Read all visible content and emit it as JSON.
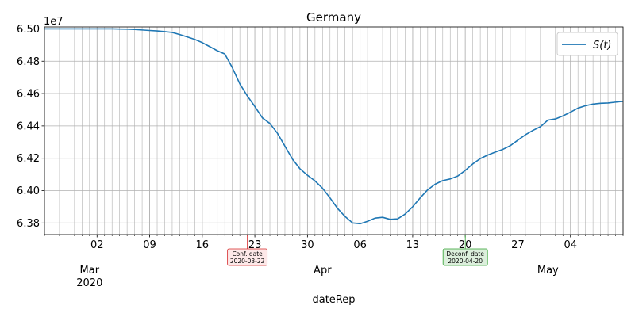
{
  "chart_data": {
    "type": "line",
    "title": "Germany",
    "xlabel": "dateRep",
    "ylabel": "",
    "y_offset_label": "1e7",
    "y_scale": 10000000,
    "ylim": [
      6.3728,
      6.5012
    ],
    "xlim": [
      "2020-02-24",
      "2020-05-11"
    ],
    "grid": true,
    "legend_position": "top-right",
    "colors": {
      "series": "#1f77b4",
      "grid": "#b0b0b0",
      "conf": "#d62728",
      "deconf": "#2ca02c"
    },
    "x_ticks": [
      {
        "date": "2020-03-02",
        "label": "02"
      },
      {
        "date": "2020-03-09",
        "label": "09"
      },
      {
        "date": "2020-03-16",
        "label": "16"
      },
      {
        "date": "2020-03-23",
        "label": "23"
      },
      {
        "date": "2020-03-30",
        "label": "30"
      },
      {
        "date": "2020-04-06",
        "label": "06"
      },
      {
        "date": "2020-04-13",
        "label": "13"
      },
      {
        "date": "2020-04-20",
        "label": "20"
      },
      {
        "date": "2020-04-27",
        "label": "27"
      },
      {
        "date": "2020-05-04",
        "label": "04"
      }
    ],
    "month_labels": [
      {
        "date": "2020-03-01",
        "label": "Mar",
        "year": "2020"
      },
      {
        "date": "2020-04-01",
        "label": "Apr",
        "year": ""
      },
      {
        "date": "2020-05-01",
        "label": "May",
        "year": ""
      }
    ],
    "y_ticks": [
      6.38,
      6.4,
      6.42,
      6.44,
      6.46,
      6.48,
      6.5
    ],
    "y_tick_labels": [
      "6.38",
      "6.40",
      "6.42",
      "6.44",
      "6.46",
      "6.48",
      "6.50"
    ],
    "annotations": [
      {
        "date": "2020-03-22",
        "lines": [
          "Conf. date",
          "2020-03-22"
        ],
        "style": "conf"
      },
      {
        "date": "2020-04-20",
        "lines": [
          "Deconf. date",
          "2020-04-20"
        ],
        "style": "deconf"
      }
    ],
    "series": [
      {
        "name": "S(t)",
        "x": [
          "2020-02-24",
          "2020-02-25",
          "2020-02-26",
          "2020-02-27",
          "2020-02-28",
          "2020-02-29",
          "2020-03-01",
          "2020-03-02",
          "2020-03-03",
          "2020-03-04",
          "2020-03-05",
          "2020-03-06",
          "2020-03-07",
          "2020-03-08",
          "2020-03-09",
          "2020-03-10",
          "2020-03-11",
          "2020-03-12",
          "2020-03-13",
          "2020-03-14",
          "2020-03-15",
          "2020-03-16",
          "2020-03-17",
          "2020-03-18",
          "2020-03-19",
          "2020-03-20",
          "2020-03-21",
          "2020-03-22",
          "2020-03-23",
          "2020-03-24",
          "2020-03-25",
          "2020-03-26",
          "2020-03-27",
          "2020-03-28",
          "2020-03-29",
          "2020-03-30",
          "2020-03-31",
          "2020-04-01",
          "2020-04-02",
          "2020-04-03",
          "2020-04-04",
          "2020-04-05",
          "2020-04-06",
          "2020-04-07",
          "2020-04-08",
          "2020-04-09",
          "2020-04-10",
          "2020-04-11",
          "2020-04-12",
          "2020-04-13",
          "2020-04-14",
          "2020-04-15",
          "2020-04-16",
          "2020-04-17",
          "2020-04-18",
          "2020-04-19",
          "2020-04-20",
          "2020-04-21",
          "2020-04-22",
          "2020-04-23",
          "2020-04-24",
          "2020-04-25",
          "2020-04-26",
          "2020-04-27",
          "2020-04-28",
          "2020-04-29",
          "2020-04-30",
          "2020-05-01",
          "2020-05-02",
          "2020-05-03",
          "2020-05-04",
          "2020-05-05",
          "2020-05-06",
          "2020-05-07",
          "2020-05-08",
          "2020-05-09",
          "2020-05-10",
          "2020-05-11"
        ],
        "values": [
          6.5,
          6.5,
          6.5,
          6.5,
          6.5,
          6.5,
          6.5,
          6.5,
          6.5,
          6.5,
          6.4999,
          6.4998,
          6.4996,
          6.4993,
          6.499,
          6.4987,
          6.4983,
          6.4978,
          6.4965,
          6.495,
          6.4935,
          6.4915,
          6.489,
          6.4865,
          6.4845,
          6.476,
          6.466,
          6.4585,
          6.452,
          6.445,
          6.4415,
          6.4355,
          6.4275,
          6.4195,
          6.4135,
          6.4095,
          6.406,
          6.4015,
          6.3955,
          6.389,
          6.384,
          6.38,
          6.3795,
          6.381,
          6.383,
          6.3835,
          6.3822,
          6.3825,
          6.3855,
          6.39,
          6.3955,
          6.4005,
          6.404,
          6.4062,
          6.4072,
          6.409,
          6.4125,
          6.4165,
          6.4198,
          6.422,
          6.4238,
          6.4255,
          6.4278,
          6.4312,
          6.4345,
          6.4372,
          6.4395,
          6.4436,
          6.4443,
          6.4462,
          6.4485,
          6.451,
          6.4525,
          6.4535,
          6.454,
          6.4542,
          6.4547,
          6.4552
        ]
      }
    ]
  }
}
